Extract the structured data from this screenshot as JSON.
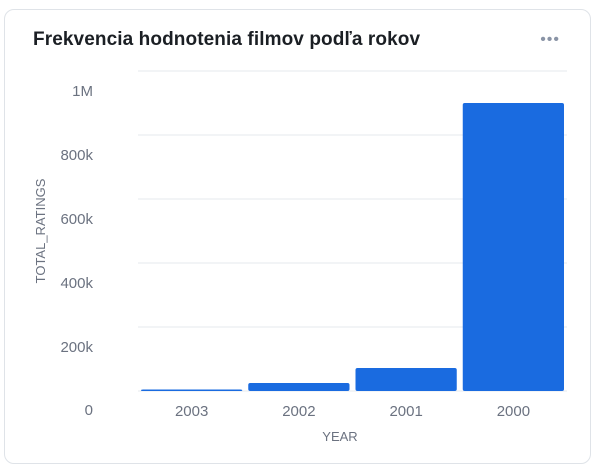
{
  "card": {
    "title": "Frekvencia hodnotenia filmov podľa rokov",
    "menu_icon": "more-horizontal-icon",
    "menu_label": "•••"
  },
  "colors": {
    "bar": "#1a6be0",
    "grid": "#e6e9ee",
    "text": "#6b7280"
  },
  "chart_data": {
    "type": "bar",
    "categories": [
      "2003",
      "2002",
      "2001",
      "2000"
    ],
    "values": [
      4000,
      25000,
      72000,
      900000
    ],
    "title": "Frekvencia hodnotenia filmov podľa rokov",
    "xlabel": "YEAR",
    "ylabel": "TOTAL_RATINGS",
    "ylim": [
      0,
      1000000
    ],
    "yticks": [
      {
        "value": 0,
        "label": "0"
      },
      {
        "value": 200000,
        "label": "200k"
      },
      {
        "value": 400000,
        "label": "400k"
      },
      {
        "value": 600000,
        "label": "600k"
      },
      {
        "value": 800000,
        "label": "800k"
      },
      {
        "value": 1000000,
        "label": "1M"
      }
    ],
    "grid": true,
    "legend": "none"
  }
}
